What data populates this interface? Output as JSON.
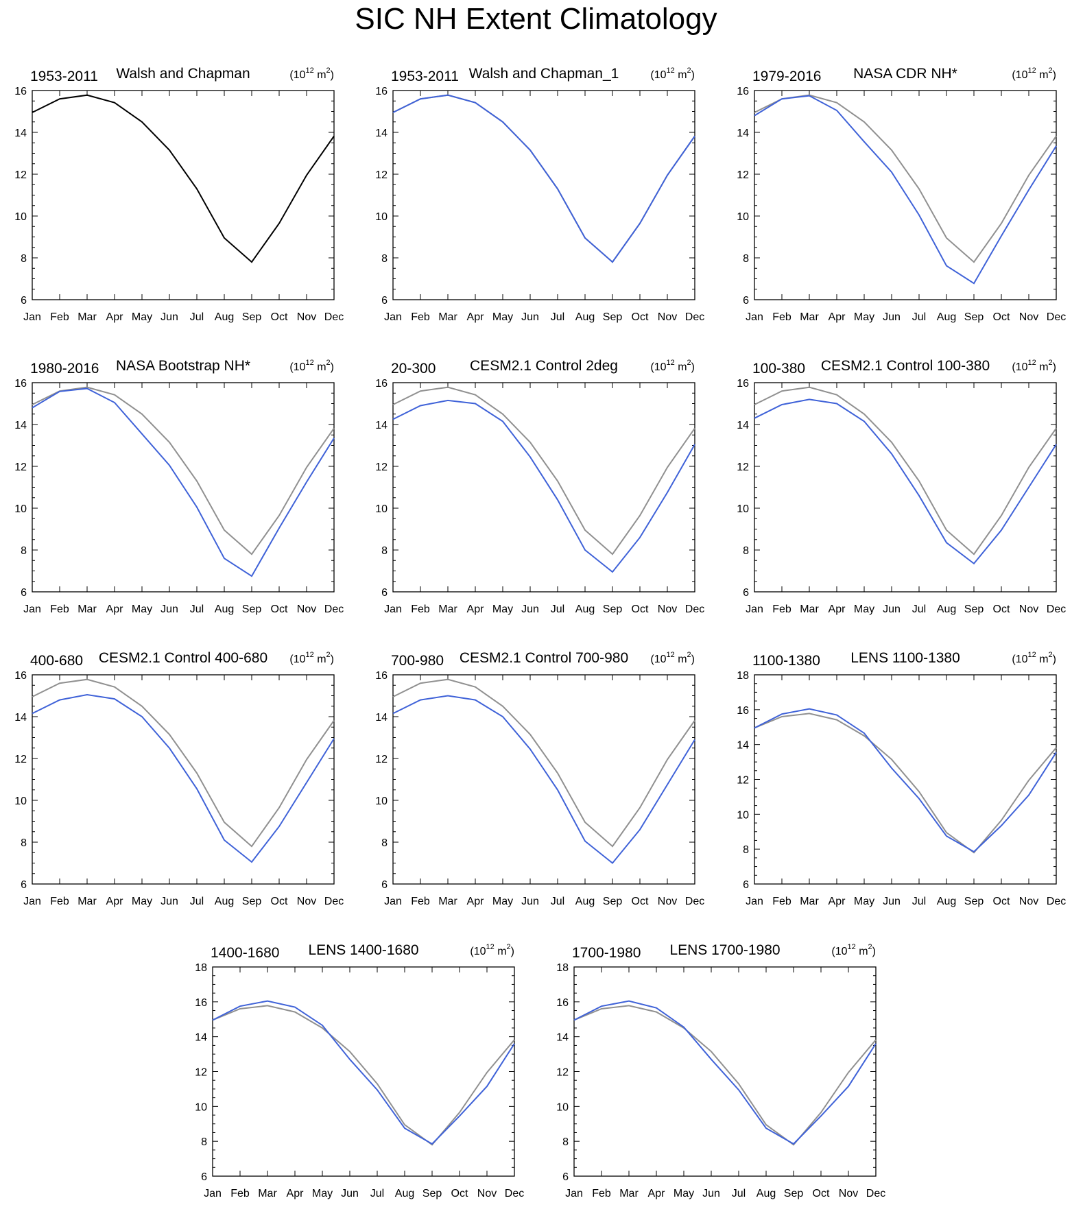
{
  "title": "SIC NH Extent Climatology",
  "reference_series_name": "Walsh and Chapman",
  "months": [
    "Jan",
    "Feb",
    "Mar",
    "Apr",
    "May",
    "Jun",
    "Jul",
    "Aug",
    "Sep",
    "Oct",
    "Nov",
    "Dec"
  ],
  "colors": {
    "reference": "#909090",
    "model": "#3f62d8",
    "first": "#000000"
  },
  "chart_data": [
    {
      "type": "line",
      "left_title": "1953-2011",
      "center_title": "Walsh and Chapman",
      "units": "(10",
      "units_sup": "12",
      "units_rest": " m",
      "units_sup2": "2",
      "units_end": ")",
      "ylim": [
        6,
        16
      ],
      "yticks": [
        6,
        8,
        10,
        12,
        14,
        16
      ],
      "show_reference": false,
      "series_color": "first",
      "values": [
        14.95,
        15.6,
        15.78,
        15.42,
        14.5,
        13.15,
        11.3,
        8.95,
        7.8,
        9.65,
        11.95,
        13.82
      ]
    },
    {
      "type": "line",
      "left_title": "1953-2011",
      "center_title": "Walsh and Chapman_1",
      "units": "(10",
      "units_sup": "12",
      "units_rest": " m",
      "units_sup2": "2",
      "units_end": ")",
      "ylim": [
        6,
        16
      ],
      "yticks": [
        6,
        8,
        10,
        12,
        14,
        16
      ],
      "show_reference": true,
      "series_color": "model",
      "values": [
        14.95,
        15.6,
        15.78,
        15.42,
        14.5,
        13.15,
        11.3,
        8.95,
        7.8,
        9.65,
        11.95,
        13.82
      ]
    },
    {
      "type": "line",
      "left_title": "1979-2016",
      "center_title": "NASA CDR NH*",
      "units": "(10",
      "units_sup": "12",
      "units_rest": " m",
      "units_sup2": "2",
      "units_end": ")",
      "ylim": [
        6,
        16
      ],
      "yticks": [
        6,
        8,
        10,
        12,
        14,
        16
      ],
      "show_reference": true,
      "series_color": "model",
      "values": [
        14.8,
        15.6,
        15.75,
        15.05,
        13.55,
        12.1,
        10.05,
        7.62,
        6.78,
        9.05,
        11.25,
        13.35
      ]
    },
    {
      "type": "line",
      "left_title": "1980-2016",
      "center_title": "NASA Bootstrap NH*",
      "units": "(10",
      "units_sup": "12",
      "units_rest": " m",
      "units_sup2": "2",
      "units_end": ")",
      "ylim": [
        6,
        16
      ],
      "yticks": [
        6,
        8,
        10,
        12,
        14,
        16
      ],
      "show_reference": true,
      "series_color": "model",
      "values": [
        14.8,
        15.58,
        15.72,
        15.05,
        13.55,
        12.05,
        10.05,
        7.6,
        6.75,
        9.05,
        11.25,
        13.35
      ]
    },
    {
      "type": "line",
      "left_title": "20-300",
      "center_title": "CESM2.1 Control 2deg",
      "units": "(10",
      "units_sup": "12",
      "units_rest": " m",
      "units_sup2": "2",
      "units_end": ")",
      "ylim": [
        6,
        16
      ],
      "yticks": [
        6,
        8,
        10,
        12,
        14,
        16
      ],
      "show_reference": true,
      "series_color": "model",
      "values": [
        14.25,
        14.9,
        15.15,
        15.0,
        14.15,
        12.45,
        10.4,
        8.0,
        6.95,
        8.6,
        10.75,
        13.05
      ]
    },
    {
      "type": "line",
      "left_title": "100-380",
      "center_title": "CESM2.1 Control 100-380",
      "units": "(10",
      "units_sup": "12",
      "units_rest": " m",
      "units_sup2": "2",
      "units_end": ")",
      "ylim": [
        6,
        16
      ],
      "yticks": [
        6,
        8,
        10,
        12,
        14,
        16
      ],
      "show_reference": true,
      "series_color": "model",
      "values": [
        14.3,
        14.95,
        15.2,
        15.0,
        14.15,
        12.6,
        10.6,
        8.35,
        7.35,
        8.95,
        11.0,
        13.05
      ]
    },
    {
      "type": "line",
      "left_title": "400-680",
      "center_title": "CESM2.1 Control 400-680",
      "units": "(10",
      "units_sup": "12",
      "units_rest": " m",
      "units_sup2": "2",
      "units_end": ")",
      "ylim": [
        6,
        16
      ],
      "yticks": [
        6,
        8,
        10,
        12,
        14,
        16
      ],
      "show_reference": true,
      "series_color": "model",
      "values": [
        14.15,
        14.8,
        15.05,
        14.85,
        14.0,
        12.5,
        10.55,
        8.1,
        7.05,
        8.75,
        10.85,
        12.95
      ]
    },
    {
      "type": "line",
      "left_title": "700-980",
      "center_title": "CESM2.1 Control 700-980",
      "units": "(10",
      "units_sup": "12",
      "units_rest": " m",
      "units_sup2": "2",
      "units_end": ")",
      "ylim": [
        6,
        16
      ],
      "yticks": [
        6,
        8,
        10,
        12,
        14,
        16
      ],
      "show_reference": true,
      "series_color": "model",
      "values": [
        14.15,
        14.8,
        15.0,
        14.8,
        14.0,
        12.45,
        10.5,
        8.05,
        7.0,
        8.6,
        10.75,
        12.9
      ]
    },
    {
      "type": "line",
      "left_title": "1100-1380",
      "center_title": "LENS 1100-1380",
      "units": "(10",
      "units_sup": "12",
      "units_rest": " m",
      "units_sup2": "2",
      "units_end": ")",
      "ylim": [
        6,
        18
      ],
      "yticks": [
        6,
        8,
        10,
        12,
        14,
        16,
        18
      ],
      "show_reference": true,
      "series_color": "model",
      "values": [
        14.95,
        15.75,
        16.05,
        15.7,
        14.65,
        12.65,
        10.9,
        8.75,
        7.85,
        9.35,
        11.1,
        13.55
      ]
    },
    {
      "type": "line",
      "left_title": "1400-1680",
      "center_title": "LENS 1400-1680",
      "units": "(10",
      "units_sup": "12",
      "units_rest": " m",
      "units_sup2": "2",
      "units_end": ")",
      "ylim": [
        6,
        18
      ],
      "yticks": [
        6,
        8,
        10,
        12,
        14,
        16,
        18
      ],
      "show_reference": true,
      "series_color": "model",
      "values": [
        14.95,
        15.75,
        16.05,
        15.7,
        14.65,
        12.7,
        10.95,
        8.75,
        7.85,
        9.45,
        11.15,
        13.6
      ]
    },
    {
      "type": "line",
      "left_title": "1700-1980",
      "center_title": "LENS 1700-1980",
      "units": "(10",
      "units_sup": "12",
      "units_rest": " m",
      "units_sup2": "2",
      "units_end": ")",
      "ylim": [
        6,
        18
      ],
      "yticks": [
        6,
        8,
        10,
        12,
        14,
        16,
        18
      ],
      "show_reference": true,
      "series_color": "model",
      "values": [
        14.95,
        15.75,
        16.05,
        15.65,
        14.55,
        12.7,
        10.95,
        8.75,
        7.85,
        9.45,
        11.15,
        13.6
      ]
    }
  ],
  "reference_values": [
    14.95,
    15.6,
    15.78,
    15.42,
    14.5,
    13.15,
    11.3,
    8.95,
    7.8,
    9.65,
    11.95,
    13.82
  ]
}
